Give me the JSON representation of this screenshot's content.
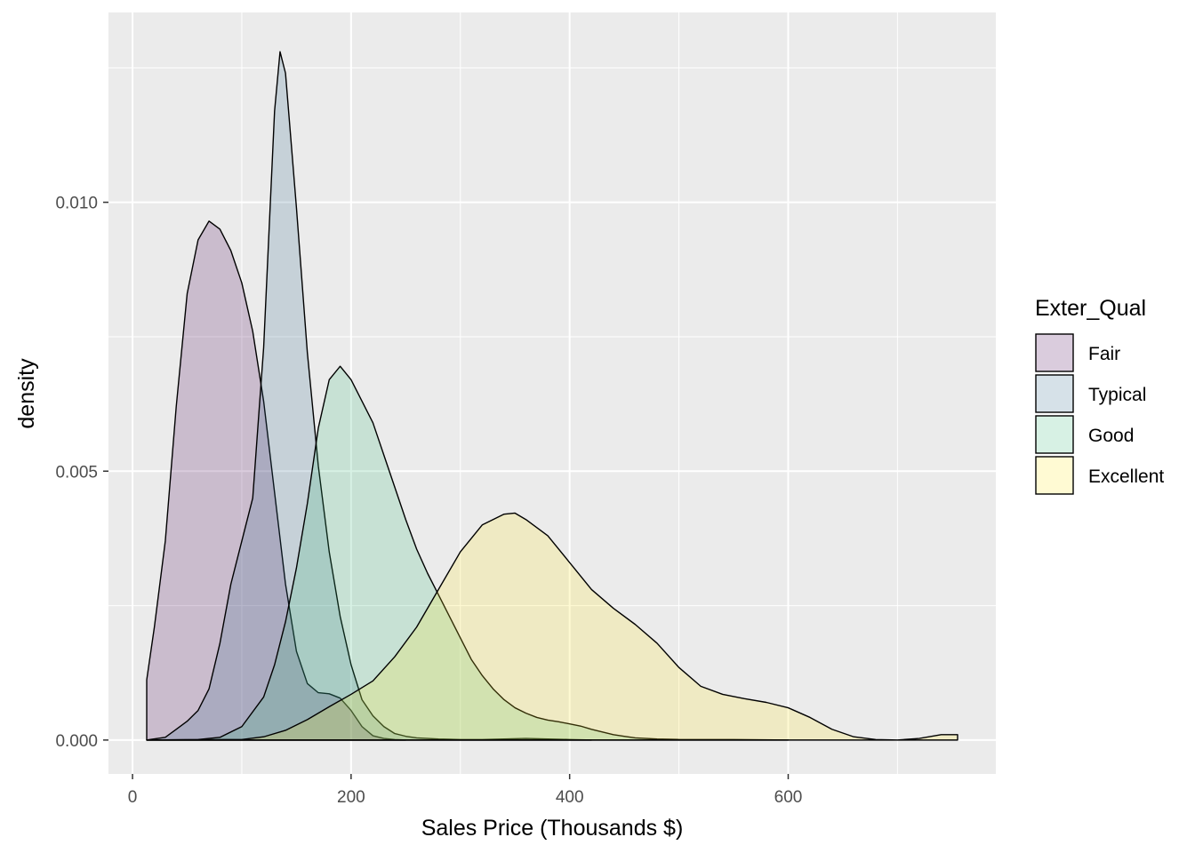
{
  "chart_data": {
    "type": "area",
    "subtype": "density",
    "title": "",
    "xlabel": "Sales Price (Thousands $)",
    "ylabel": "density",
    "xlim": [
      -22,
      790
    ],
    "ylim": [
      -0.00063,
      0.01353
    ],
    "x_ticks": [
      0,
      200,
      400,
      600
    ],
    "x_tick_labels": [
      "0",
      "200",
      "400",
      "600"
    ],
    "y_ticks": [
      0.0,
      0.005,
      0.01
    ],
    "y_tick_labels": [
      "0.000",
      "0.005",
      "0.010"
    ],
    "grid": true,
    "legend": {
      "title": "Exter_Qual",
      "placement": "right"
    },
    "fill_opacity": 0.2,
    "series": [
      {
        "name": "Fair",
        "color": "#440154",
        "x": [
          13,
          20,
          30,
          40,
          50,
          60,
          70,
          80,
          90,
          100,
          110,
          120,
          130,
          140,
          150,
          160,
          170,
          180,
          190,
          200,
          210,
          220,
          230,
          240,
          250
        ],
        "y": [
          0.00112,
          0.0021,
          0.0037,
          0.0062,
          0.0083,
          0.0093,
          0.00965,
          0.0095,
          0.0091,
          0.0085,
          0.0076,
          0.0063,
          0.0046,
          0.0029,
          0.00165,
          0.00105,
          0.00088,
          0.00086,
          0.00078,
          0.00055,
          0.00025,
          8e-05,
          3e-05,
          1e-05,
          0.0
        ]
      },
      {
        "name": "Typical",
        "color": "#31688E",
        "x": [
          13,
          30,
          40,
          50,
          60,
          70,
          80,
          90,
          100,
          110,
          120,
          130,
          135,
          140,
          150,
          160,
          170,
          180,
          190,
          200,
          210,
          220,
          230,
          240,
          250,
          260,
          270,
          280,
          300,
          320,
          340,
          360,
          380,
          400,
          420
        ],
        "y": [
          0.0,
          5e-05,
          0.0002,
          0.00035,
          0.00055,
          0.00095,
          0.0018,
          0.0029,
          0.0037,
          0.0045,
          0.0073,
          0.0117,
          0.0128,
          0.0124,
          0.0099,
          0.0072,
          0.0051,
          0.0035,
          0.0023,
          0.0014,
          0.00075,
          0.00045,
          0.00025,
          0.00012,
          7e-05,
          4e-05,
          3e-05,
          2e-05,
          1e-05,
          1e-05,
          2e-05,
          3e-05,
          2e-05,
          1e-05,
          0.0
        ]
      },
      {
        "name": "Good",
        "color": "#35B779",
        "x": [
          13,
          60,
          80,
          100,
          120,
          130,
          140,
          150,
          160,
          170,
          180,
          190,
          200,
          210,
          220,
          230,
          240,
          250,
          260,
          270,
          280,
          290,
          300,
          310,
          320,
          330,
          340,
          350,
          360,
          370,
          380,
          390,
          400,
          410,
          420,
          430,
          440,
          450,
          460,
          480,
          500,
          550,
          600
        ],
        "y": [
          0.0,
          1e-05,
          5e-05,
          0.00025,
          0.0008,
          0.0014,
          0.0022,
          0.0032,
          0.0044,
          0.0058,
          0.0067,
          0.00695,
          0.0067,
          0.0063,
          0.0059,
          0.0053,
          0.0047,
          0.0041,
          0.00355,
          0.0031,
          0.0027,
          0.0023,
          0.0019,
          0.0015,
          0.0012,
          0.00095,
          0.00075,
          0.0006,
          0.0005,
          0.00042,
          0.00037,
          0.00034,
          0.0003,
          0.00026,
          0.0002,
          0.00015,
          0.0001,
          7e-05,
          4e-05,
          2e-05,
          1e-05,
          1e-05,
          0.0
        ]
      },
      {
        "name": "Excellent",
        "color": "#FDE725",
        "x": [
          13,
          100,
          120,
          140,
          160,
          180,
          200,
          220,
          240,
          260,
          280,
          300,
          320,
          340,
          350,
          360,
          380,
          400,
          420,
          440,
          460,
          480,
          500,
          520,
          540,
          560,
          580,
          600,
          620,
          640,
          660,
          680,
          700,
          720,
          740,
          755
        ],
        "y": [
          0.0,
          1e-05,
          6e-05,
          0.00018,
          0.00038,
          0.00062,
          0.00085,
          0.0011,
          0.00155,
          0.0021,
          0.0028,
          0.0035,
          0.004,
          0.0042,
          0.00422,
          0.0041,
          0.0038,
          0.0033,
          0.0028,
          0.00245,
          0.00215,
          0.0018,
          0.00135,
          0.001,
          0.00085,
          0.00077,
          0.0007,
          0.0006,
          0.00042,
          0.0002,
          6e-05,
          1e-05,
          0.0,
          3e-05,
          0.0001,
          0.0001
        ]
      }
    ]
  }
}
